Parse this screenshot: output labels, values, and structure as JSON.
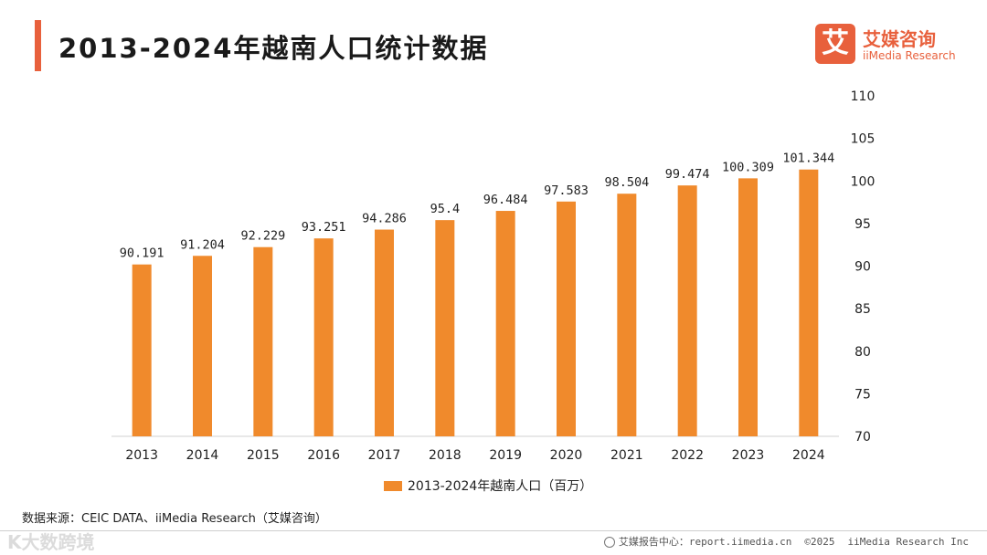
{
  "header": {
    "title": "2013-2024年越南人口统计数据"
  },
  "brand": {
    "mark": "艾",
    "name_cn": "艾媒咨询",
    "name_en": "iiMedia Research",
    "color": "#e8603c"
  },
  "chart_data": {
    "type": "bar",
    "title": "2013-2024年越南人口统计数据",
    "categories": [
      "2013",
      "2014",
      "2015",
      "2016",
      "2017",
      "2018",
      "2019",
      "2020",
      "2021",
      "2022",
      "2023",
      "2024"
    ],
    "series": [
      {
        "name": "2013-2024年越南人口（百万）",
        "values": [
          90.191,
          91.204,
          92.229,
          93.251,
          94.286,
          95.4,
          96.484,
          97.583,
          98.504,
          99.474,
          100.309,
          101.344
        ],
        "labels": [
          "90.191",
          "91.204",
          "92.229",
          "93.251",
          "94.286",
          "95.4",
          "96.484",
          "97.583",
          "98.504",
          "99.474",
          "100.309",
          "101.344"
        ],
        "color": "#f08a2c"
      }
    ],
    "yaxis_position": "right",
    "ylim": [
      70,
      110
    ],
    "yticks": [
      70,
      75,
      80,
      85,
      90,
      95,
      100,
      105,
      110
    ],
    "grid": false,
    "legend": "bottom-center",
    "xlabel": "",
    "ylabel": ""
  },
  "source": {
    "text": "数据来源：CEIC DATA、iiMedia Research（艾媒咨询）"
  },
  "watermark": {
    "text": "K大数跨境"
  },
  "footer": {
    "report_center": "艾媒报告中心：report.iimedia.cn",
    "copyright": "©2025",
    "company": "iiMedia Research Inc"
  }
}
